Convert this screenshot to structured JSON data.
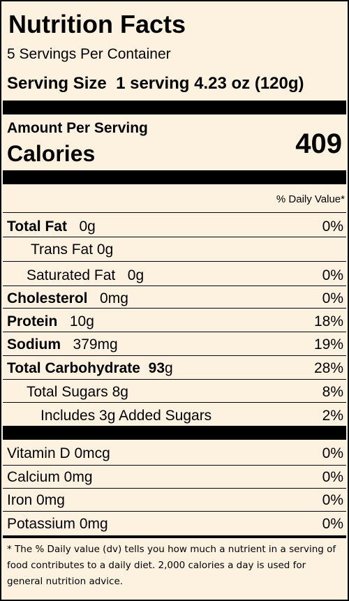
{
  "title": "Nutrition Facts",
  "servings_per_container": "5 Servings Per Container",
  "serving_size": {
    "label": "Serving Size",
    "value": "1 serving 4.23 oz (120g)"
  },
  "amount_per_serving": "Amount Per Serving",
  "calories": {
    "label": "Calories",
    "value": "409"
  },
  "daily_value_header": "% Daily Value*",
  "nutrients": [
    {
      "label": "Total Fat",
      "amount": "0g",
      "dv": "0%"
    },
    {
      "label": "Trans Fat",
      "amount": "0g",
      "dv": ""
    },
    {
      "label": "Saturated Fat",
      "amount": "0g",
      "dv": "0%"
    },
    {
      "label": "Cholesterol",
      "amount": "0mg",
      "dv": "0%"
    },
    {
      "label": "Protein",
      "amount": "10g",
      "dv": "18%"
    },
    {
      "label": "Sodium",
      "amount": "379mg",
      "dv": "19%"
    },
    {
      "label": "Total Carbohydrate",
      "amount": "93",
      "unit": "g",
      "dv": "28%"
    },
    {
      "label": "Total Sugars",
      "amount": "8g",
      "dv": "8%"
    },
    {
      "label": "Includes 3g Added Sugars",
      "amount": "",
      "dv": "2%"
    }
  ],
  "vitamins": [
    {
      "label": "Vitamin D 0mcg",
      "dv": "0%"
    },
    {
      "label": "Calcium 0mg",
      "dv": "0%"
    },
    {
      "label": "Iron 0mg",
      "dv": "0%"
    },
    {
      "label": "Potassium 0mg",
      "dv": "0%"
    }
  ],
  "footnote": "* The % Daily value (dv) tells you how much a nutrient in a serving of food contributes to a daily diet. 2,000 calories a day is used for general nutrition advice."
}
